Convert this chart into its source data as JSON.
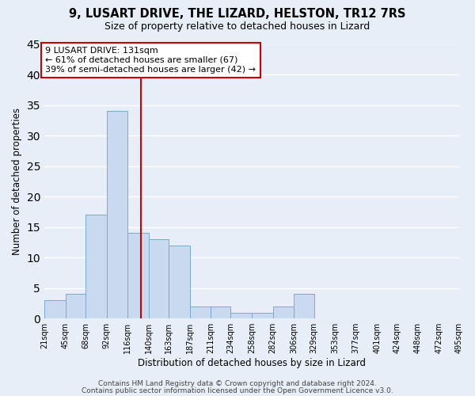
{
  "title": "9, LUSART DRIVE, THE LIZARD, HELSTON, TR12 7RS",
  "subtitle": "Size of property relative to detached houses in Lizard",
  "xlabel": "Distribution of detached houses by size in Lizard",
  "ylabel": "Number of detached properties",
  "bar_color": "#c8d9f0",
  "bar_edge_color": "#7aaad0",
  "background_color": "#e8eef7",
  "grid_color": "#ffffff",
  "bin_labels": [
    "21sqm",
    "45sqm",
    "68sqm",
    "92sqm",
    "116sqm",
    "140sqm",
    "163sqm",
    "187sqm",
    "211sqm",
    "234sqm",
    "258sqm",
    "282sqm",
    "306sqm",
    "329sqm",
    "353sqm",
    "377sqm",
    "401sqm",
    "424sqm",
    "448sqm",
    "472sqm",
    "495sqm"
  ],
  "bin_edges": [
    21,
    45,
    68,
    92,
    116,
    140,
    163,
    187,
    211,
    234,
    258,
    282,
    306,
    329,
    353,
    377,
    401,
    424,
    448,
    472,
    495
  ],
  "bar_heights": [
    3,
    4,
    17,
    34,
    14,
    13,
    12,
    2,
    2,
    1,
    1,
    2,
    4,
    0,
    0,
    0,
    0,
    0,
    0,
    0
  ],
  "ylim": [
    0,
    45
  ],
  "yticks": [
    0,
    5,
    10,
    15,
    20,
    25,
    30,
    35,
    40,
    45
  ],
  "vline_x": 131,
  "vline_color": "#cc0000",
  "annotation_title": "9 LUSART DRIVE: 131sqm",
  "annotation_line1": "← 61% of detached houses are smaller (67)",
  "annotation_line2": "39% of semi-detached houses are larger (42) →",
  "annotation_box_color": "#ffffff",
  "annotation_box_edge": "#cc0000",
  "footer_line1": "Contains HM Land Registry data © Crown copyright and database right 2024.",
  "footer_line2": "Contains public sector information licensed under the Open Government Licence v3.0."
}
